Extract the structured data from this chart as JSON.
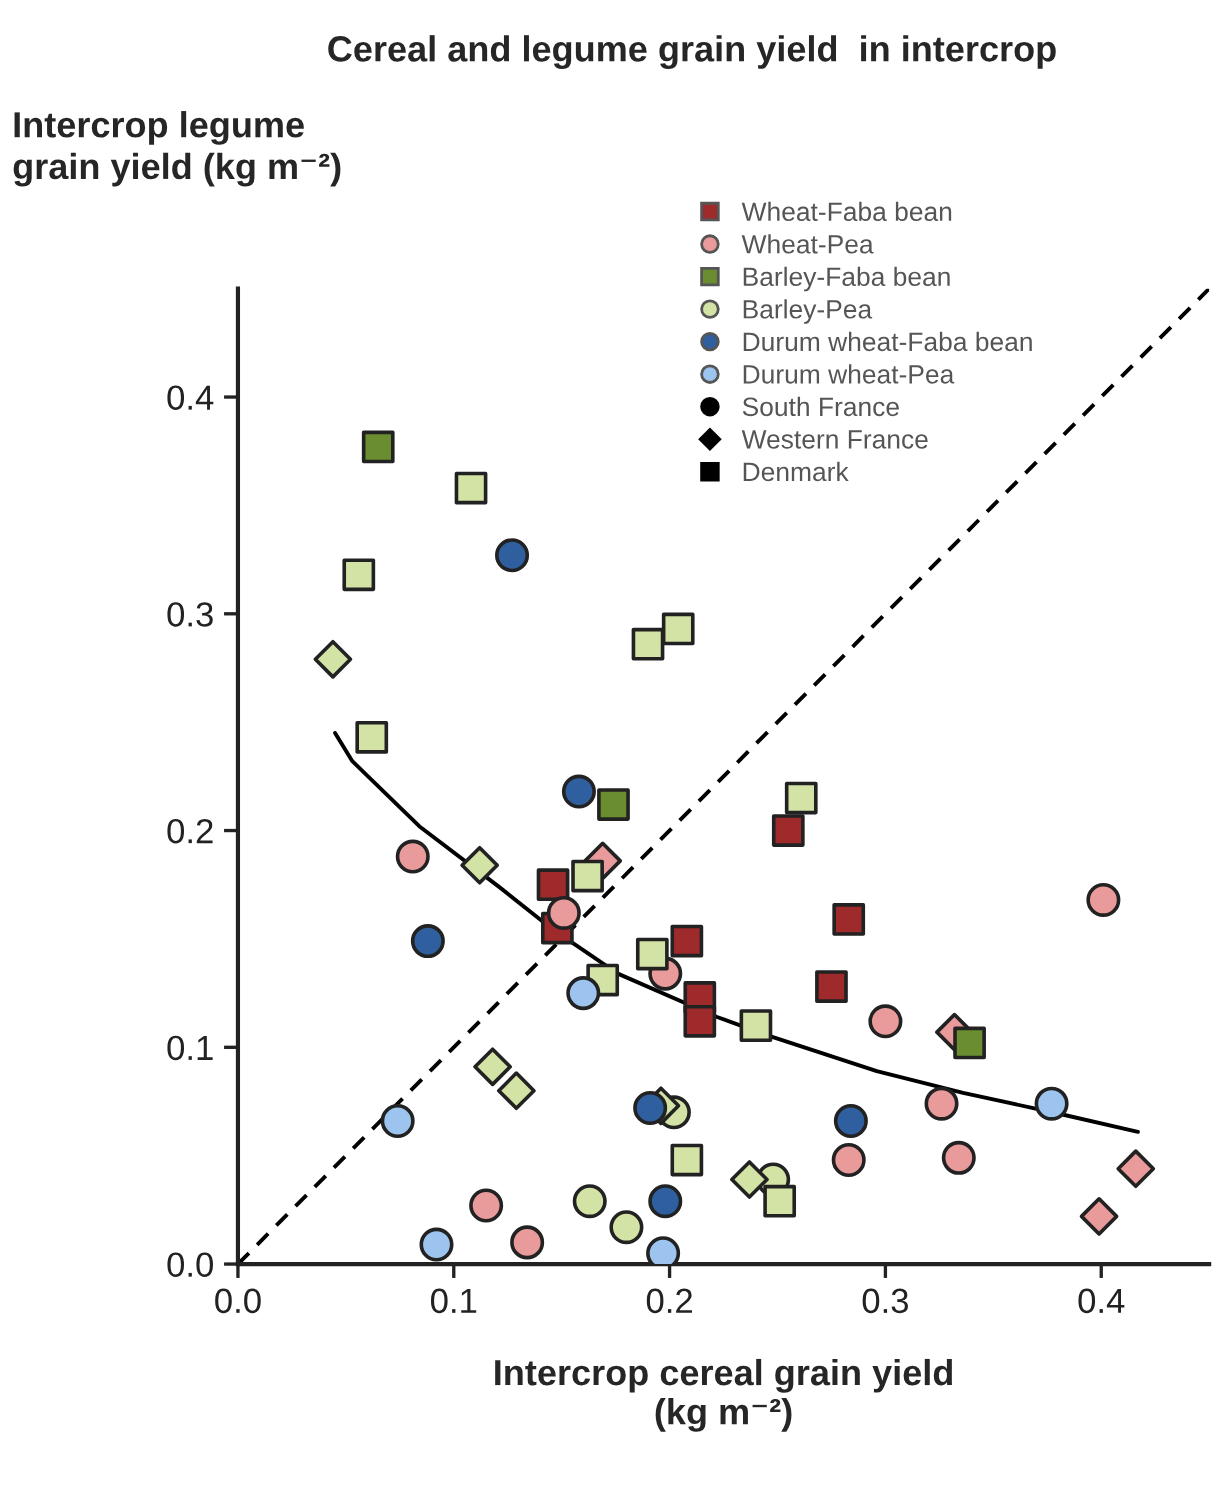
{
  "chart_data": {
    "type": "scatter",
    "title": "Cereal and legume grain yield  in intercrop",
    "xlabel": "Intercrop cereal grain yield\n(kg m⁻²)",
    "ylabel": "Intercrop legume\ngrain yield (kg m⁻²)",
    "xlim": [
      0,
      0.45
    ],
    "ylim": [
      0,
      0.45
    ],
    "xticks": [
      {
        "value": 0,
        "label": "0.0"
      },
      0.1,
      0.2,
      0.3,
      0.4
    ],
    "yticks": [
      {
        "value": 0,
        "label": "0.0"
      },
      0.1,
      0.2,
      0.3,
      0.4
    ],
    "legend": "top right",
    "series": [
      {
        "name": "Wheat-Faba bean",
        "color": "#9e2a2b",
        "marker": "square",
        "x": [
          0.146,
          0.148,
          0.208,
          0.214,
          0.214,
          0.255,
          0.283,
          0.275
        ],
        "values": [
          0.175,
          0.155,
          0.149,
          0.123,
          0.112,
          0.2,
          0.159,
          0.128
        ]
      },
      {
        "name": "Wheat-Pea",
        "color": "#e99a9a",
        "marker": "circle",
        "x": [
          0.081,
          0.151,
          0.198,
          0.115,
          0.134,
          0.401,
          0.3,
          0.326,
          0.283,
          0.334
        ],
        "values": [
          0.188,
          0.162,
          0.134,
          0.027,
          0.01,
          0.168,
          0.112,
          0.074,
          0.048,
          0.049
        ]
      },
      {
        "color": "#e99a9a",
        "marker": "diamond",
        "x": [
          0.169,
          0.332,
          0.416,
          0.399
        ],
        "values": [
          0.186,
          0.107,
          0.044,
          0.022
        ]
      },
      {
        "name": "Barley-Faba bean",
        "color": "#6a8e2f",
        "marker": "square",
        "x": [
          0.065,
          0.174,
          0.339
        ],
        "values": [
          0.377,
          0.212,
          0.102
        ]
      },
      {
        "name": "Barley-Pea",
        "color": "#d3e3a6",
        "marker": "circle",
        "x": [
          0.202,
          0.163,
          0.18,
          0.248
        ],
        "values": [
          0.07,
          0.029,
          0.017,
          0.039
        ]
      },
      {
        "color": "#d3e3a6",
        "marker": "square",
        "x": [
          0.108,
          0.056,
          0.19,
          0.204,
          0.062,
          0.162,
          0.192,
          0.169,
          0.208,
          0.261,
          0.24,
          0.251
        ],
        "values": [
          0.358,
          0.318,
          0.286,
          0.293,
          0.243,
          0.179,
          0.143,
          0.131,
          0.048,
          0.215,
          0.11,
          0.029
        ]
      },
      {
        "color": "#d3e3a6",
        "marker": "diamond",
        "x": [
          0.044,
          0.112,
          0.118,
          0.129,
          0.196,
          0.237
        ],
        "values": [
          0.279,
          0.184,
          0.091,
          0.08,
          0.073,
          0.039
        ]
      },
      {
        "name": "Durum wheat-Faba bean",
        "color": "#2f5f9e",
        "marker": "circle",
        "x": [
          0.127,
          0.158,
          0.088,
          0.191,
          0.198,
          0.284
        ],
        "values": [
          0.327,
          0.218,
          0.149,
          0.072,
          0.029,
          0.066
        ]
      },
      {
        "name": "Durum wheat-Pea",
        "color": "#9cc4ee",
        "marker": "circle",
        "x": [
          0.16,
          0.074,
          0.092,
          0.197,
          0.377
        ],
        "values": [
          0.125,
          0.066,
          0.009,
          0.005,
          0.074
        ]
      },
      {
        "name": "South France",
        "color": "#000000",
        "marker": "circle"
      },
      {
        "name": "Western France",
        "color": "#000000",
        "marker": "diamond"
      },
      {
        "name": "Denmark",
        "color": "#000000",
        "marker": "square"
      },
      {
        "type": "line",
        "color": "#000000",
        "line_style": "dashed",
        "marker": "none",
        "x": [
          0,
          0.45
        ],
        "values": [
          0,
          0.45
        ]
      },
      {
        "type": "line",
        "color": "#000000",
        "line_style": "solid",
        "marker": "none",
        "x": [
          0.045,
          0.053,
          0.084,
          0.121,
          0.145,
          0.176,
          0.222,
          0.244,
          0.296,
          0.336,
          0.382,
          0.417
        ],
        "values": [
          0.245,
          0.232,
          0.202,
          0.174,
          0.155,
          0.134,
          0.114,
          0.106,
          0.089,
          0.079,
          0.069,
          0.061
        ]
      }
    ]
  }
}
